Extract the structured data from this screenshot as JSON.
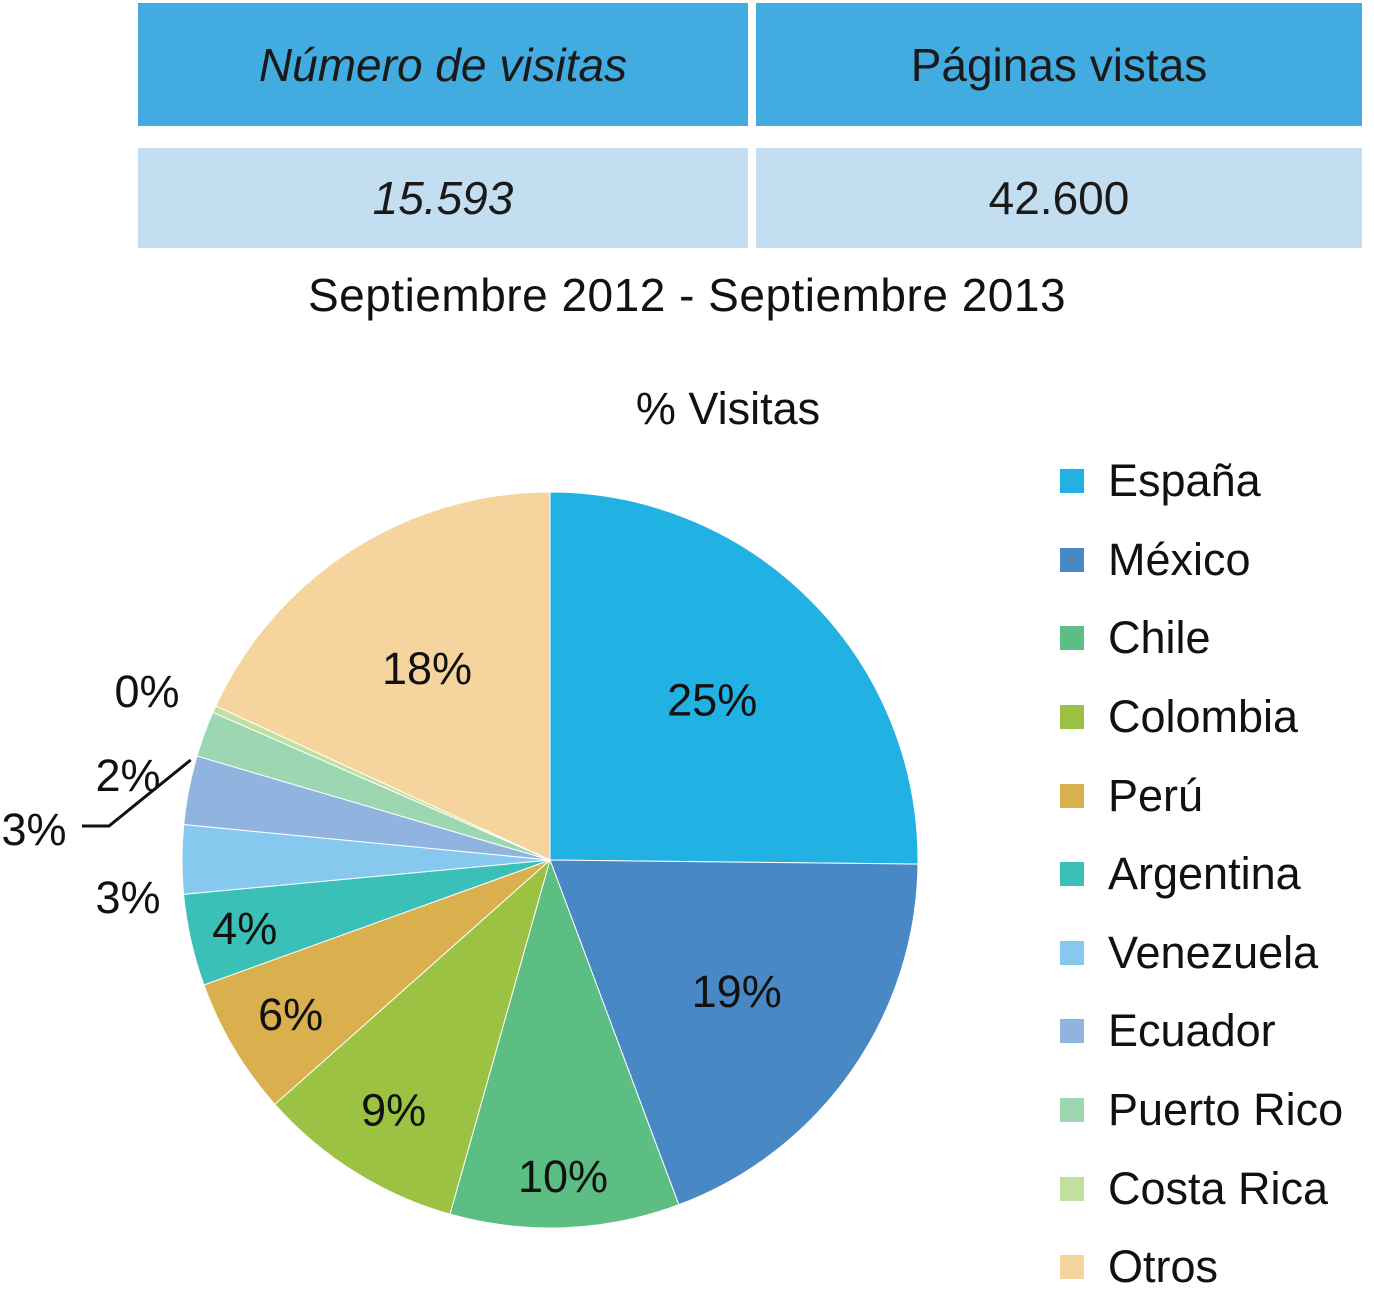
{
  "stats_table": {
    "header_visits": "Número de visitas",
    "header_pageviews": "Páginas vistas",
    "value_visits": "15.593",
    "value_pageviews": "42.600",
    "header_color": "#42abe0",
    "body_color": "#c3ddf1"
  },
  "period_label": "Septiembre 2012 - Septiembre 2013",
  "chart_data": {
    "type": "pie",
    "title": "% Visitas",
    "legend_position": "right",
    "slices": [
      {
        "name": "España",
        "value": 25,
        "label": "25%",
        "color": "#21b1e3"
      },
      {
        "name": "México",
        "value": 19,
        "label": "19%",
        "color": "#4888c5"
      },
      {
        "name": "Chile",
        "value": 10,
        "label": "10%",
        "color": "#5cbe82"
      },
      {
        "name": "Colombia",
        "value": 9,
        "label": "9%",
        "color": "#9bc242"
      },
      {
        "name": "Perú",
        "value": 6,
        "label": "6%",
        "color": "#d9b04d"
      },
      {
        "name": "Argentina",
        "value": 4,
        "label": "4%",
        "color": "#3bc0b8"
      },
      {
        "name": "Venezuela",
        "value": 3,
        "label": "3%",
        "color": "#86c8ee"
      },
      {
        "name": "Ecuador",
        "value": 3,
        "label": "3%",
        "color": "#91b3e0"
      },
      {
        "name": "Puerto Rico",
        "value": 2,
        "label": "2%",
        "color": "#9dd7b1"
      },
      {
        "name": "Costa Rica",
        "value": 0.3,
        "label": "0%",
        "color": "#bfe1a0"
      },
      {
        "name": "Otros",
        "value": 18,
        "label": "18%",
        "color": "#f6d49e"
      }
    ]
  }
}
